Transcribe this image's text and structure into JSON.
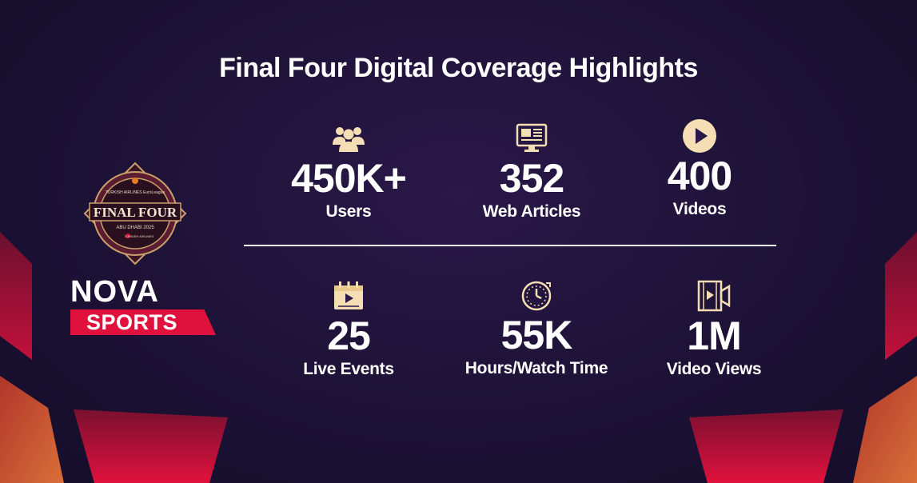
{
  "title": "Final Four Digital Coverage Highlights",
  "colors": {
    "background": "#1d1236",
    "icon": "#f5deb3",
    "accent_red": "#e0113c"
  },
  "logo_final_four": {
    "top_text": "TURKISH AIRLINES EuroLeague",
    "main_text": "FINAL FOUR",
    "sub_text": "ABU DHABI 2025",
    "sponsor_text": "TURKISH AIRLINES"
  },
  "logo_nova": {
    "word": "NOVA",
    "sub": "SPORTS"
  },
  "stats": [
    {
      "icon": "users-icon",
      "value": "450K+",
      "label": "Users"
    },
    {
      "icon": "web-articles-icon",
      "value": "352",
      "label": "Web Articles"
    },
    {
      "icon": "play-circle-icon",
      "value": "400",
      "label": "Videos"
    },
    {
      "icon": "calendar-play-icon",
      "value": "25",
      "label": "Live Events"
    },
    {
      "icon": "stopwatch-icon",
      "value": "55K",
      "label": "Hours/Watch Time"
    },
    {
      "icon": "video-camera-icon",
      "value": "1M",
      "label": "Video Views"
    }
  ]
}
